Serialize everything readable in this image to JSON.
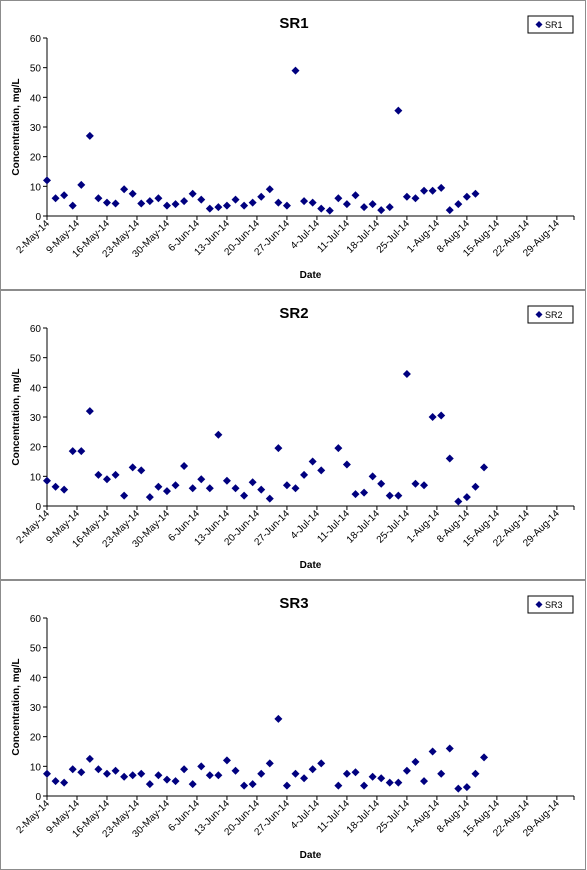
{
  "dates": [
    "2-May-14",
    "9-May-14",
    "16-May-14",
    "23-May-14",
    "30-May-14",
    "6-Jun-14",
    "13-Jun-14",
    "20-Jun-14",
    "27-Jun-14",
    "4-Jul-14",
    "11-Jul-14",
    "18-Jul-14",
    "25-Jul-14",
    "1-Aug-14",
    "8-Aug-14",
    "15-Aug-14",
    "22-Aug-14",
    "29-Aug-14"
  ],
  "marker_color": "#00007f",
  "chart_data": [
    {
      "type": "scatter",
      "title": "SR1",
      "xlabel": "Date",
      "ylabel": "Concentration, mg/L",
      "ylim": [
        0,
        60
      ],
      "yticks": [
        0,
        10,
        20,
        30,
        40,
        50,
        60
      ],
      "xlim": [
        "2-May-14",
        "2-Sep-14"
      ],
      "grid": false,
      "legend": "top-right",
      "series": [
        {
          "name": "SR1",
          "points": [
            [
              "2-May-14",
              12
            ],
            [
              "4-May-14",
              6
            ],
            [
              "6-May-14",
              7
            ],
            [
              "8-May-14",
              3.5
            ],
            [
              "10-May-14",
              10.5
            ],
            [
              "12-May-14",
              27
            ],
            [
              "14-May-14",
              6
            ],
            [
              "16-May-14",
              4.5
            ],
            [
              "18-May-14",
              4.2
            ],
            [
              "20-May-14",
              9
            ],
            [
              "22-May-14",
              7.5
            ],
            [
              "24-May-14",
              4.2
            ],
            [
              "26-May-14",
              5
            ],
            [
              "28-May-14",
              6
            ],
            [
              "30-May-14",
              3.5
            ],
            [
              "1-Jun-14",
              4
            ],
            [
              "3-Jun-14",
              5
            ],
            [
              "5-Jun-14",
              7.5
            ],
            [
              "7-Jun-14",
              5.5
            ],
            [
              "9-Jun-14",
              2.5
            ],
            [
              "11-Jun-14",
              3
            ],
            [
              "13-Jun-14",
              3.5
            ],
            [
              "15-Jun-14",
              5.5
            ],
            [
              "17-Jun-14",
              3.5
            ],
            [
              "19-Jun-14",
              4.5
            ],
            [
              "21-Jun-14",
              6.5
            ],
            [
              "23-Jun-14",
              9
            ],
            [
              "25-Jun-14",
              4.5
            ],
            [
              "27-Jun-14",
              3.5
            ],
            [
              "29-Jun-14",
              49
            ],
            [
              "1-Jul-14",
              5
            ],
            [
              "3-Jul-14",
              4.5
            ],
            [
              "5-Jul-14",
              2.5
            ],
            [
              "7-Jul-14",
              1.8
            ],
            [
              "9-Jul-14",
              6
            ],
            [
              "11-Jul-14",
              4
            ],
            [
              "13-Jul-14",
              7
            ],
            [
              "15-Jul-14",
              3
            ],
            [
              "17-Jul-14",
              4
            ],
            [
              "19-Jul-14",
              2
            ],
            [
              "21-Jul-14",
              3
            ],
            [
              "23-Jul-14",
              35.5
            ],
            [
              "25-Jul-14",
              6.5
            ],
            [
              "27-Jul-14",
              6
            ],
            [
              "29-Jul-14",
              8.5
            ],
            [
              "31-Jul-14",
              8.5
            ],
            [
              "2-Aug-14",
              9.5
            ],
            [
              "4-Aug-14",
              2
            ],
            [
              "6-Aug-14",
              4
            ],
            [
              "8-Aug-14",
              6.5
            ],
            [
              "10-Aug-14",
              7.5
            ]
          ]
        }
      ]
    },
    {
      "type": "scatter",
      "title": "SR2",
      "xlabel": "Date",
      "ylabel": "Concentration, mg/L",
      "ylim": [
        0,
        60
      ],
      "yticks": [
        0,
        10,
        20,
        30,
        40,
        50,
        60
      ],
      "xlim": [
        "2-May-14",
        "2-Sep-14"
      ],
      "grid": false,
      "legend": "top-right",
      "series": [
        {
          "name": "SR2",
          "points": [
            [
              "2-May-14",
              8.5
            ],
            [
              "4-May-14",
              6.5
            ],
            [
              "6-May-14",
              5.5
            ],
            [
              "8-May-14",
              18.5
            ],
            [
              "10-May-14",
              18.5
            ],
            [
              "12-May-14",
              32
            ],
            [
              "14-May-14",
              10.5
            ],
            [
              "16-May-14",
              9
            ],
            [
              "18-May-14",
              10.5
            ],
            [
              "20-May-14",
              3.5
            ],
            [
              "22-May-14",
              13
            ],
            [
              "24-May-14",
              12
            ],
            [
              "26-May-14",
              3
            ],
            [
              "28-May-14",
              6.5
            ],
            [
              "30-May-14",
              5
            ],
            [
              "1-Jun-14",
              7
            ],
            [
              "3-Jun-14",
              13.5
            ],
            [
              "5-Jun-14",
              6
            ],
            [
              "7-Jun-14",
              9
            ],
            [
              "9-Jun-14",
              6
            ],
            [
              "11-Jun-14",
              24
            ],
            [
              "13-Jun-14",
              8.5
            ],
            [
              "15-Jun-14",
              6
            ],
            [
              "17-Jun-14",
              3.5
            ],
            [
              "19-Jun-14",
              8
            ],
            [
              "21-Jun-14",
              5.5
            ],
            [
              "23-Jun-14",
              2.5
            ],
            [
              "25-Jun-14",
              19.5
            ],
            [
              "27-Jun-14",
              7
            ],
            [
              "29-Jun-14",
              6
            ],
            [
              "1-Jul-14",
              10.5
            ],
            [
              "3-Jul-14",
              15
            ],
            [
              "5-Jul-14",
              12
            ],
            [
              "9-Jul-14",
              19.5
            ],
            [
              "11-Jul-14",
              14
            ],
            [
              "13-Jul-14",
              4
            ],
            [
              "15-Jul-14",
              4.5
            ],
            [
              "17-Jul-14",
              10
            ],
            [
              "19-Jul-14",
              7.5
            ],
            [
              "21-Jul-14",
              3.5
            ],
            [
              "23-Jul-14",
              3.5
            ],
            [
              "25-Jul-14",
              44.5
            ],
            [
              "27-Jul-14",
              7.5
            ],
            [
              "29-Jul-14",
              7
            ],
            [
              "31-Jul-14",
              30
            ],
            [
              "2-Aug-14",
              30.5
            ],
            [
              "4-Aug-14",
              16
            ],
            [
              "6-Aug-14",
              1.5
            ],
            [
              "8-Aug-14",
              3
            ],
            [
              "10-Aug-14",
              6.5
            ],
            [
              "12-Aug-14",
              13
            ]
          ]
        }
      ]
    },
    {
      "type": "scatter",
      "title": "SR3",
      "xlabel": "Date",
      "ylabel": "Concentration, mg/L",
      "ylim": [
        0,
        60
      ],
      "yticks": [
        0,
        10,
        20,
        30,
        40,
        50,
        60
      ],
      "xlim": [
        "2-May-14",
        "2-Sep-14"
      ],
      "grid": false,
      "legend": "top-right",
      "series": [
        {
          "name": "SR3",
          "points": [
            [
              "2-May-14",
              7.5
            ],
            [
              "4-May-14",
              5
            ],
            [
              "6-May-14",
              4.5
            ],
            [
              "8-May-14",
              9
            ],
            [
              "10-May-14",
              8
            ],
            [
              "12-May-14",
              12.5
            ],
            [
              "14-May-14",
              9
            ],
            [
              "16-May-14",
              7.5
            ],
            [
              "18-May-14",
              8.5
            ],
            [
              "20-May-14",
              6.5
            ],
            [
              "22-May-14",
              7
            ],
            [
              "24-May-14",
              7.5
            ],
            [
              "26-May-14",
              4
            ],
            [
              "28-May-14",
              7
            ],
            [
              "30-May-14",
              5.5
            ],
            [
              "1-Jun-14",
              5
            ],
            [
              "3-Jun-14",
              9
            ],
            [
              "5-Jun-14",
              4
            ],
            [
              "7-Jun-14",
              10
            ],
            [
              "9-Jun-14",
              7
            ],
            [
              "11-Jun-14",
              7
            ],
            [
              "13-Jun-14",
              12
            ],
            [
              "15-Jun-14",
              8.5
            ],
            [
              "17-Jun-14",
              3.5
            ],
            [
              "19-Jun-14",
              4
            ],
            [
              "21-Jun-14",
              7.5
            ],
            [
              "23-Jun-14",
              11
            ],
            [
              "25-Jun-14",
              26
            ],
            [
              "27-Jun-14",
              3.5
            ],
            [
              "29-Jun-14",
              7.5
            ],
            [
              "1-Jul-14",
              6
            ],
            [
              "3-Jul-14",
              9
            ],
            [
              "5-Jul-14",
              11
            ],
            [
              "9-Jul-14",
              3.5
            ],
            [
              "11-Jul-14",
              7.5
            ],
            [
              "13-Jul-14",
              8
            ],
            [
              "15-Jul-14",
              3.5
            ],
            [
              "17-Jul-14",
              6.5
            ],
            [
              "19-Jul-14",
              6
            ],
            [
              "21-Jul-14",
              4.5
            ],
            [
              "23-Jul-14",
              4.5
            ],
            [
              "25-Jul-14",
              8.5
            ],
            [
              "27-Jul-14",
              11.5
            ],
            [
              "29-Jul-14",
              5
            ],
            [
              "31-Jul-14",
              15
            ],
            [
              "2-Aug-14",
              7.5
            ],
            [
              "4-Aug-14",
              16
            ],
            [
              "6-Aug-14",
              2.5
            ],
            [
              "8-Aug-14",
              3
            ],
            [
              "10-Aug-14",
              7.5
            ],
            [
              "12-Aug-14",
              13
            ]
          ]
        }
      ]
    }
  ]
}
